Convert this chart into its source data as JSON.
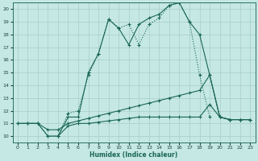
{
  "xlabel": "Humidex (Indice chaleur)",
  "xlim": [
    -0.5,
    23.5
  ],
  "ylim": [
    9.5,
    20.5
  ],
  "xticks": [
    0,
    1,
    2,
    3,
    4,
    5,
    6,
    7,
    8,
    9,
    10,
    11,
    12,
    13,
    14,
    15,
    16,
    17,
    18,
    19,
    20,
    21,
    22,
    23
  ],
  "yticks": [
    10,
    11,
    12,
    13,
    14,
    15,
    16,
    17,
    18,
    19,
    20
  ],
  "bg_color": "#c5e8e5",
  "grid_color": "#a8ccc8",
  "line_color": "#1a6655",
  "lines": [
    {
      "x": [
        1,
        2,
        3,
        4,
        5,
        6,
        7,
        8,
        9,
        10,
        11,
        12,
        13,
        14,
        15,
        16,
        17,
        18,
        19
      ],
      "y": [
        11,
        11,
        10,
        10,
        11.8,
        12,
        14.8,
        16.5,
        19.2,
        18.5,
        18.8,
        17.2,
        18.8,
        19.3,
        20.3,
        20.5,
        19.0,
        14.8,
        11.5
      ],
      "style": "dotted"
    },
    {
      "x": [
        4,
        5,
        6,
        7,
        8,
        9,
        10,
        11,
        12,
        13,
        14,
        15,
        16,
        17,
        18,
        19,
        20,
        21,
        22,
        23
      ],
      "y": [
        10,
        11.5,
        11.5,
        15,
        16.5,
        19.2,
        18.5,
        17.2,
        18.8,
        19.3,
        19.6,
        20.3,
        20.5,
        19.0,
        18.0,
        14.8,
        11.5,
        11.3,
        11.3,
        11.3
      ],
      "style": "solid"
    },
    {
      "x": [
        0,
        1,
        2,
        3,
        4,
        5,
        6,
        7,
        8,
        9,
        10,
        11,
        12,
        13,
        14,
        15,
        16,
        17,
        18,
        19,
        20,
        21,
        22,
        23
      ],
      "y": [
        11,
        11,
        11,
        10.5,
        10.5,
        11,
        11.2,
        11.4,
        11.6,
        11.8,
        12.0,
        12.2,
        12.4,
        12.6,
        12.8,
        13.0,
        13.2,
        13.4,
        13.6,
        14.8,
        11.5,
        11.3,
        11.3,
        11.3
      ],
      "style": "solid"
    },
    {
      "x": [
        0,
        1,
        2,
        3,
        4,
        5,
        6,
        7,
        8,
        9,
        10,
        11,
        12,
        13,
        14,
        15,
        16,
        17,
        18,
        19,
        20,
        21,
        22,
        23
      ],
      "y": [
        11,
        11,
        11,
        10,
        10,
        10.8,
        11,
        11,
        11.1,
        11.2,
        11.3,
        11.4,
        11.5,
        11.5,
        11.5,
        11.5,
        11.5,
        11.5,
        11.5,
        12.5,
        11.5,
        11.3,
        11.3,
        11.3
      ],
      "style": "solid"
    }
  ]
}
